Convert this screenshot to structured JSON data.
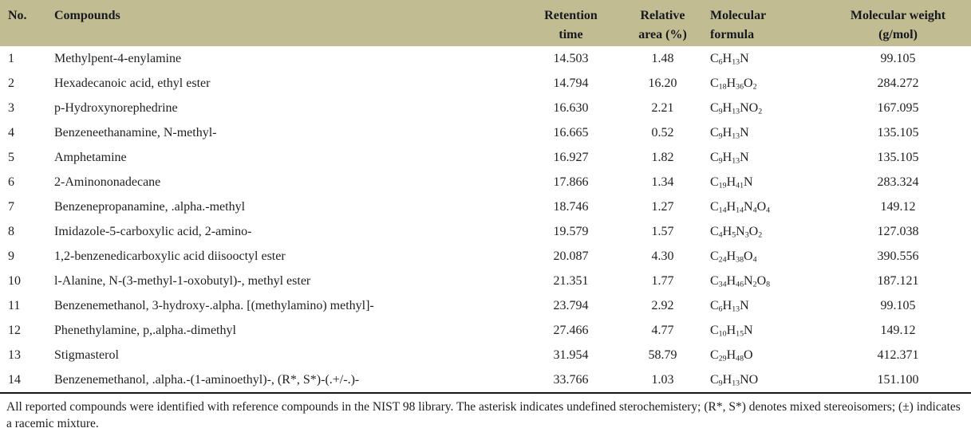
{
  "colors": {
    "header_bg": "#c2bc93",
    "header_text": "#16191d",
    "body_text": "#1f1f1f",
    "rule": "#161616"
  },
  "table": {
    "headers": [
      {
        "line1": "No.",
        "line2": ""
      },
      {
        "line1": "Compounds",
        "line2": ""
      },
      {
        "line1": "Retention",
        "line2": "time"
      },
      {
        "line1": "Relative",
        "line2": "area (%)"
      },
      {
        "line1": "Molecular",
        "line2": "formula"
      },
      {
        "line1": "Molecular weight",
        "line2": "(g/mol)"
      }
    ],
    "rows": [
      {
        "no": "1",
        "compound": "Methylpent-4-enylamine",
        "retention_time": "14.503",
        "relative_area": "1.48",
        "formula": "C6H13N",
        "mol_weight": "99.105"
      },
      {
        "no": "2",
        "compound": "Hexadecanoic acid, ethyl ester",
        "retention_time": "14.794",
        "relative_area": "16.20",
        "formula": "C18H36O2",
        "mol_weight": "284.272"
      },
      {
        "no": "3",
        "compound": "p-Hydroxynorephedrine",
        "retention_time": "16.630",
        "relative_area": "2.21",
        "formula": "C9H13NO2",
        "mol_weight": "167.095"
      },
      {
        "no": "4",
        "compound": "Benzeneethanamine, N-methyl-",
        "retention_time": "16.665",
        "relative_area": "0.52",
        "formula": "C9H13N",
        "mol_weight": "135.105"
      },
      {
        "no": "5",
        "compound": "Amphetamine",
        "retention_time": "16.927",
        "relative_area": "1.82",
        "formula": "C9H13N",
        "mol_weight": "135.105"
      },
      {
        "no": "6",
        "compound": "2-Aminononadecane",
        "retention_time": "17.866",
        "relative_area": "1.34",
        "formula": "C19H41N",
        "mol_weight": "283.324"
      },
      {
        "no": "7",
        "compound": "Benzenepropanamine, .alpha.-methyl",
        "retention_time": "18.746",
        "relative_area": "1.27",
        "formula": "C14H14N4O4",
        "mol_weight": "149.12"
      },
      {
        "no": "8",
        "compound": "Imidazole-5-carboxylic acid, 2-amino-",
        "retention_time": "19.579",
        "relative_area": "1.57",
        "formula": "C4H5N3O2",
        "mol_weight": "127.038"
      },
      {
        "no": "9",
        "compound": "1,2-benzenedicarboxylic acid diisooctyl ester",
        "retention_time": "20.087",
        "relative_area": "4.30",
        "formula": "C24H38O4",
        "mol_weight": "390.556"
      },
      {
        "no": "10",
        "compound": "l-Alanine, N-(3-methyl-1-oxobutyl)-, methyl ester",
        "retention_time": "21.351",
        "relative_area": "1.77",
        "formula": "C34H46N2O8",
        "mol_weight": "187.121"
      },
      {
        "no": "11",
        "compound": "Benzenemethanol, 3-hydroxy-.alpha. [(methylamino) methyl]-",
        "retention_time": "23.794",
        "relative_area": "2.92",
        "formula": "C6H13N",
        "mol_weight": "99.105"
      },
      {
        "no": "12",
        "compound": "Phenethylamine, p,.alpha.-dimethyl",
        "retention_time": "27.466",
        "relative_area": "4.77",
        "formula": "C10H15N",
        "mol_weight": "149.12"
      },
      {
        "no": "13",
        "compound": "Stigmasterol",
        "retention_time": "31.954",
        "relative_area": "58.79",
        "formula": "C29H48O",
        "mol_weight": "412.371"
      },
      {
        "no": "14",
        "compound": "Benzenemethanol, .alpha.-(1-aminoethyl)-, (R*, S*)-(.+/-.)-",
        "retention_time": "33.766",
        "relative_area": "1.03",
        "formula": "C9H13NO",
        "mol_weight": "151.100"
      }
    ]
  },
  "footnote": "All reported compounds were identified with reference compounds in the NIST 98 library. The asterisk indicates undefined sterochemistery; (R*, S*) denotes mixed stereoisomers; (±) indicates a racemic mixture."
}
